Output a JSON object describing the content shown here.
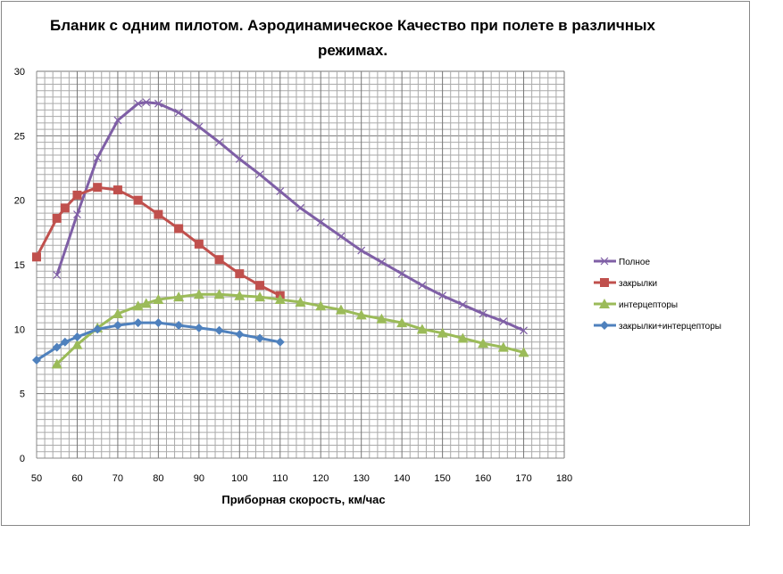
{
  "chart_data": {
    "type": "line",
    "title": "Бланик с одним пилотом. Аэродинамическое  Качество  при полете в различных режимах.",
    "xlabel": "Приборная скорость, км/час",
    "ylabel": "",
    "xlim": [
      50,
      180
    ],
    "ylim": [
      0,
      30
    ],
    "xticks": [
      50,
      60,
      70,
      80,
      90,
      100,
      110,
      120,
      130,
      140,
      150,
      160,
      170,
      180
    ],
    "yticks": [
      0,
      5,
      10,
      15,
      20,
      25,
      30
    ],
    "grid": true,
    "legend_position": "right",
    "series": [
      {
        "name": "Полное",
        "color": "#7f5fa6",
        "marker": "x",
        "x": [
          55,
          60,
          65,
          70,
          75,
          77,
          80,
          85,
          90,
          95,
          100,
          105,
          110,
          115,
          120,
          125,
          130,
          135,
          140,
          145,
          150,
          155,
          160,
          165,
          170
        ],
        "y": [
          14.2,
          18.9,
          23.3,
          26.2,
          27.5,
          27.6,
          27.5,
          26.8,
          25.7,
          24.5,
          23.2,
          22.0,
          20.7,
          19.4,
          18.3,
          17.2,
          16.1,
          15.2,
          14.3,
          13.4,
          12.6,
          11.9,
          11.2,
          10.6,
          9.9
        ]
      },
      {
        "name": "закрылки",
        "color": "#c0504d",
        "marker": "square",
        "x": [
          50,
          55,
          57,
          60,
          65,
          70,
          75,
          80,
          85,
          90,
          95,
          100,
          105,
          110
        ],
        "y": [
          15.6,
          18.6,
          19.4,
          20.4,
          21.0,
          20.8,
          20.0,
          18.9,
          17.8,
          16.6,
          15.4,
          14.3,
          13.4,
          12.6
        ]
      },
      {
        "name": "интерцепторы",
        "color": "#9bbb59",
        "marker": "triangle",
        "x": [
          55,
          60,
          65,
          70,
          75,
          77,
          80,
          85,
          90,
          95,
          100,
          105,
          110,
          115,
          120,
          125,
          130,
          135,
          140,
          145,
          150,
          155,
          160,
          165,
          170
        ],
        "y": [
          7.3,
          8.8,
          10.1,
          11.2,
          11.8,
          12.0,
          12.3,
          12.5,
          12.7,
          12.7,
          12.6,
          12.5,
          12.3,
          12.1,
          11.8,
          11.5,
          11.1,
          10.8,
          10.5,
          10.0,
          9.7,
          9.3,
          8.9,
          8.6,
          8.2
        ]
      },
      {
        "name": "закрылки+интерцепторы",
        "color": "#4f81bd",
        "marker": "diamond",
        "x": [
          50,
          55,
          57,
          60,
          65,
          70,
          75,
          80,
          85,
          90,
          95,
          100,
          105,
          110
        ],
        "y": [
          7.6,
          8.6,
          9.0,
          9.4,
          10.0,
          10.3,
          10.5,
          10.5,
          10.3,
          10.1,
          9.9,
          9.6,
          9.3,
          9.0
        ]
      }
    ]
  }
}
